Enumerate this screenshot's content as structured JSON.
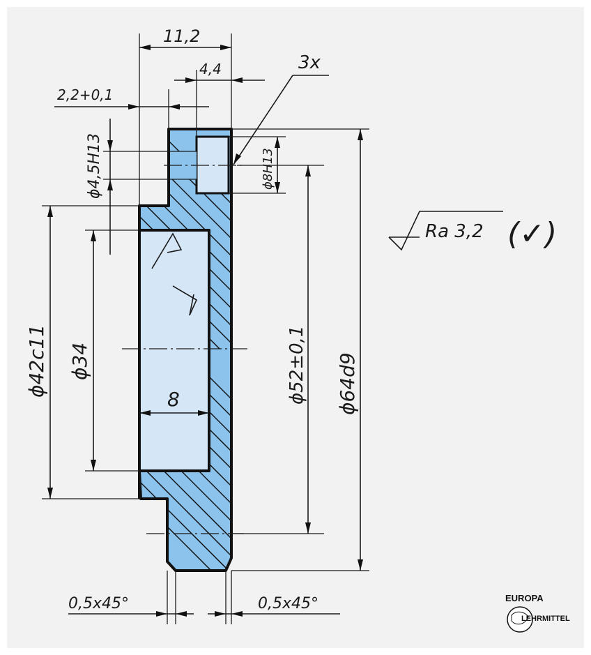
{
  "part": {
    "fill_color": "#8cc3ec",
    "bore_color": "#d5e7f6",
    "hole_color": "#d5e7f6",
    "outline_color": "#111111"
  },
  "dimensions": {
    "width_total": "11,2",
    "slot_width": "4,4",
    "step_depth": "2,2+0,1",
    "pin_hole_dia": "ϕ4,5H13",
    "counterbore_dia": "ϕ8H13",
    "count": "3x",
    "hub_dia": "ϕ42c11",
    "bore_dia": "ϕ34",
    "bore_depth": "8",
    "pitch_dia": "ϕ52±0,1",
    "outer_dia": "ϕ64d9",
    "chamfer_left": "0,5x45°",
    "chamfer_right": "0,5x45°"
  },
  "surface_finish": {
    "roughness": "Ra 3,2",
    "general_symbol": "(✓)"
  },
  "logo": {
    "top": "EUROPA",
    "bottom": "LEHRMITTEL"
  }
}
